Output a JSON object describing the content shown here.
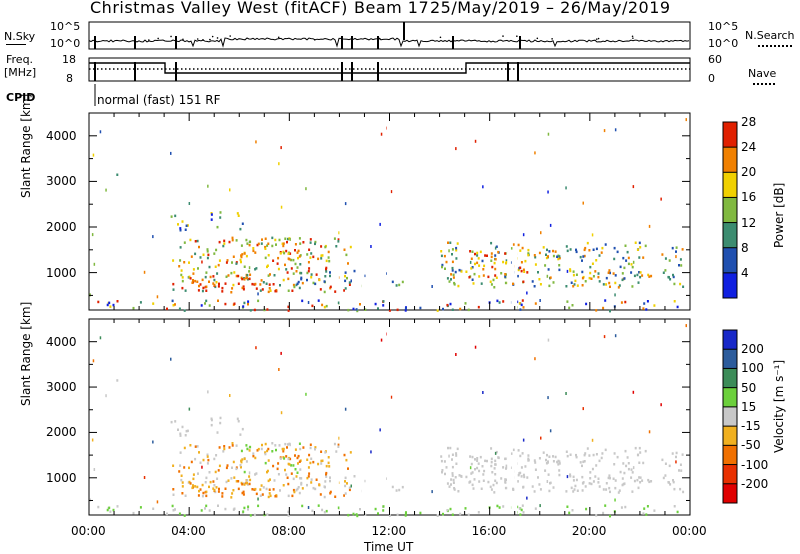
{
  "header": {
    "station": "Christmas Valley West (fitACF)",
    "beam": "Beam 17",
    "dates": "25/May/2019 – 26/May/2019"
  },
  "strip_labels": {
    "nsky": "N.Sky",
    "nsky_ticks": [
      "10^5",
      "10^0"
    ],
    "nsearch": "N.Search",
    "nsearch_ticks": [
      "10^5",
      "10^0"
    ],
    "freq": "Freq.",
    "freq_unit": "[MHz]",
    "freq_ticks": [
      "18",
      "8"
    ],
    "nave": "Nave",
    "nave_ticks": [
      "60",
      "0"
    ],
    "cpid": "CPID",
    "cpid_value": "normal (fast) 151 RF"
  },
  "chart_data": [
    {
      "type": "heatmap",
      "title": "",
      "xlabel": "Time UT",
      "ylabel": "Slant Range [km]",
      "xlim": [
        0,
        24
      ],
      "ylim": [
        180,
        4500
      ],
      "x_ticks": [
        "00:00",
        "04:00",
        "08:00",
        "12:00",
        "16:00",
        "20:00",
        "00:00"
      ],
      "y_ticks": [
        "1000",
        "2000",
        "3000",
        "4000"
      ],
      "colorbar": {
        "label": "Power [dB]",
        "ticks": [
          "4",
          "8",
          "12",
          "16",
          "20",
          "24",
          "28"
        ],
        "colors": [
          "#1020e0",
          "#2050b0",
          "#3c8c70",
          "#80b840",
          "#f0d000",
          "#f08000",
          "#e02000"
        ]
      }
    },
    {
      "type": "heatmap",
      "title": "",
      "xlabel": "Time UT",
      "ylabel": "Slant Range [km]",
      "xlim": [
        0,
        24
      ],
      "ylim": [
        180,
        4500
      ],
      "x_ticks": [
        "00:00",
        "04:00",
        "08:00",
        "12:00",
        "16:00",
        "20:00",
        "00:00"
      ],
      "y_ticks": [
        "1000",
        "2000",
        "3000",
        "4000"
      ],
      "colorbar": {
        "label": "Velocity [m s⁻¹]",
        "ticks": [
          "200",
          "100",
          "50",
          "15",
          "-15",
          "-50",
          "-100",
          "-200"
        ],
        "colors": [
          "#1828c8",
          "#2c5c9c",
          "#3c8c58",
          "#6cd03c",
          "#c8c8c8",
          "#f0b020",
          "#f07000",
          "#e83000",
          "#e00000"
        ]
      }
    }
  ],
  "x_axis_title": "Time UT"
}
